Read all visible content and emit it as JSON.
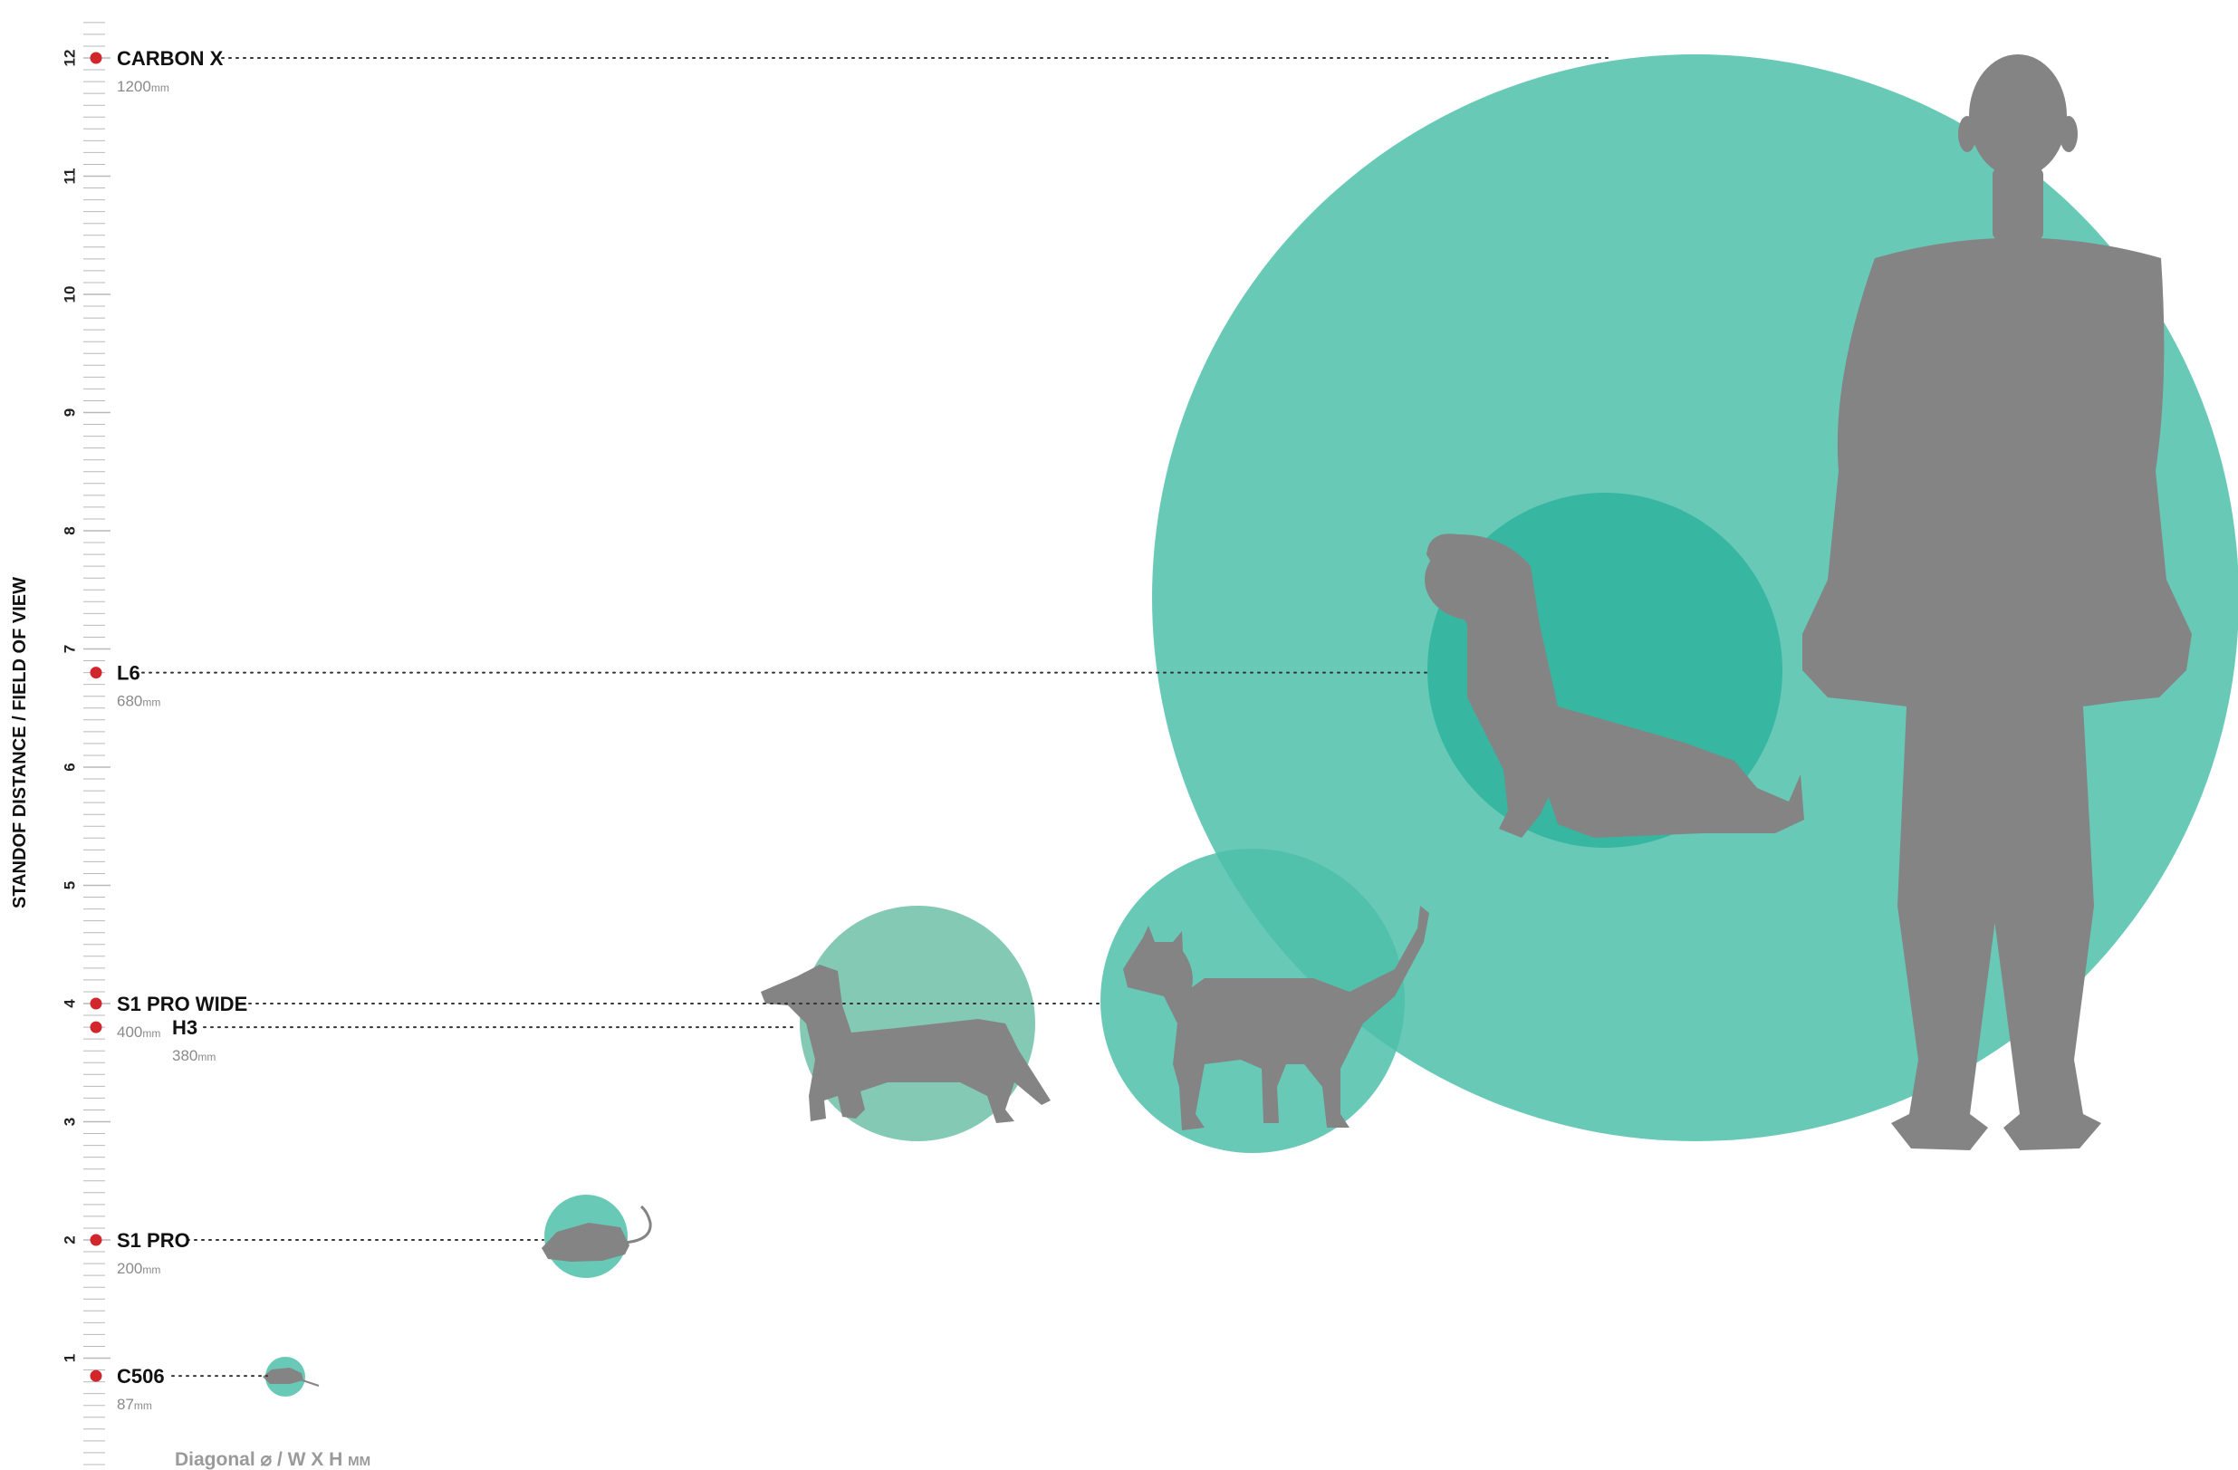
{
  "colors": {
    "circle_fill": "#4fbfaa",
    "circle_inner": "#2fb39e",
    "silhouette": "#848484",
    "marker": "#d0262c",
    "ruler": "#b9b9b9"
  },
  "chart_data": {
    "type": "scatter",
    "title": "",
    "ylabel": "STANDOF DISTANCE / FIELD OF VIEW",
    "ylim": [
      0,
      12.3
    ],
    "y_ticks": [
      "1",
      "2",
      "3",
      "4",
      "5",
      "6",
      "7",
      "8",
      "9",
      "10",
      "11",
      "12"
    ],
    "legend_text": "Diagonal ⌀ / W X H ",
    "legend_unit": "MM",
    "size_unit": "mm",
    "series": [
      {
        "name": "CARBON X",
        "distance": 12.0,
        "size_value": "1200",
        "diameter_mm": 1200,
        "subject": "human-icon"
      },
      {
        "name": "L6",
        "distance": 6.8,
        "size_value": "680",
        "diameter_mm": 680,
        "subject": "dog-icon"
      },
      {
        "name": "S1 PRO WIDE",
        "distance": 4.0,
        "size_value": "400",
        "diameter_mm": 400,
        "subject": "cat-icon"
      },
      {
        "name": "H3",
        "distance": 3.8,
        "size_value": "380",
        "diameter_mm": 380,
        "subject": "dachshund-icon"
      },
      {
        "name": "S1 PRO",
        "distance": 2.0,
        "size_value": "200",
        "diameter_mm": 200,
        "subject": "rat-icon"
      },
      {
        "name": "C506",
        "distance": 0.85,
        "size_value": "87",
        "diameter_mm": 87,
        "subject": "mouse-icon"
      }
    ]
  }
}
